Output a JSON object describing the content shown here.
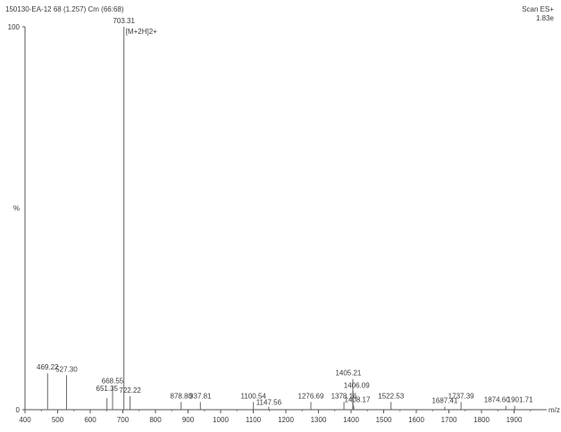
{
  "header": {
    "sample_line": "150130-EA-12 68 (1.257) Cm (66:68)",
    "scan_mode": "Scan ES+",
    "intensity": "1.83e"
  },
  "chart_data": {
    "type": "bar",
    "title": "",
    "xlabel": "m/z",
    "ylabel": "%",
    "xlim": [
      400,
      2000
    ],
    "ylim": [
      0,
      100
    ],
    "y_tick_labels": [
      "0",
      "100"
    ],
    "x_ticks": [
      400,
      500,
      600,
      700,
      800,
      900,
      1000,
      1100,
      1200,
      1300,
      1400,
      1500,
      1600,
      1700,
      1800,
      1900
    ],
    "peaks": [
      {
        "x": 469.22,
        "y": 9.5,
        "label": "469.22"
      },
      {
        "x": 527.3,
        "y": 9.0,
        "label": "527.30"
      },
      {
        "x": 651.35,
        "y": 3.0,
        "label": "651.35"
      },
      {
        "x": 668.55,
        "y": 6.0,
        "label": "668.55"
      },
      {
        "x": 703.31,
        "y": 100,
        "label": "703.31",
        "annotation": "[M+2H]2+"
      },
      {
        "x": 722.22,
        "y": 3.5,
        "label": "722.22"
      },
      {
        "x": 878.8,
        "y": 2.0,
        "label": "878.80"
      },
      {
        "x": 937.81,
        "y": 2.0,
        "label": "937.81"
      },
      {
        "x": 1100.54,
        "y": 2.0,
        "label": "1100.54"
      },
      {
        "x": 1147.56,
        "y": 0.8,
        "label": "1147.56"
      },
      {
        "x": 1276.69,
        "y": 2.0,
        "label": "1276.69"
      },
      {
        "x": 1378.16,
        "y": 2.0,
        "label": "1378.16"
      },
      {
        "x": 1405.21,
        "y": 8.0,
        "label": "1405.21"
      },
      {
        "x": 1406.09,
        "y": 4.8,
        "label": "1406.09"
      },
      {
        "x": 1408.17,
        "y": 1.0,
        "label": "1408.17"
      },
      {
        "x": 1522.53,
        "y": 2.0,
        "label": "1522.53"
      },
      {
        "x": 1687.41,
        "y": 0.8,
        "label": "1687.41"
      },
      {
        "x": 1737.39,
        "y": 2.0,
        "label": "1737.39"
      },
      {
        "x": 1874.6,
        "y": 1.0,
        "label": "1874.60"
      },
      {
        "x": 1901.71,
        "y": 1.0,
        "label": "1901.71"
      }
    ]
  }
}
